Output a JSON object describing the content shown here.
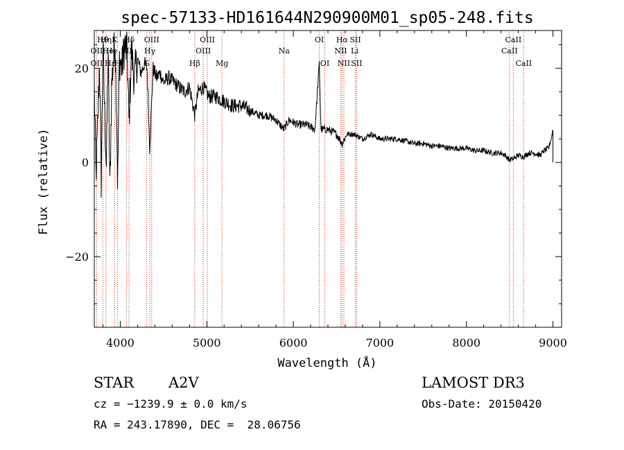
{
  "chart_data": {
    "type": "line",
    "title": "spec-57133-HD161644N290900M01_sp05-248.fits",
    "xlabel": "Wavelength (Å)",
    "ylabel": "Flux (relative)",
    "xlim": [
      3700,
      9100
    ],
    "ylim": [
      -35,
      28
    ],
    "xticks": [
      4000,
      5000,
      6000,
      7000,
      8000,
      9000
    ],
    "yticks": [
      -20,
      0,
      20
    ],
    "series": [
      {
        "name": "spectrum",
        "x": [
          3700,
          3720,
          3740,
          3760,
          3780,
          3800,
          3820,
          3840,
          3860,
          3880,
          3900,
          3920,
          3940,
          3960,
          3970,
          3990,
          4020,
          4050,
          4080,
          4101,
          4130,
          4160,
          4200,
          4240,
          4280,
          4310,
          4340,
          4380,
          4420,
          4460,
          4500,
          4560,
          4620,
          4680,
          4740,
          4800,
          4861,
          4900,
          4960,
          5020,
          5100,
          5200,
          5300,
          5400,
          5500,
          5600,
          5700,
          5800,
          5890,
          5950,
          6050,
          6150,
          6250,
          6300,
          6320,
          6400,
          6500,
          6563,
          6620,
          6700,
          6800,
          6900,
          7000,
          7100,
          7200,
          7300,
          7400,
          7500,
          7600,
          7700,
          7800,
          7900,
          8000,
          8100,
          8200,
          8300,
          8400,
          8450,
          8498,
          8542,
          8600,
          8662,
          8720,
          8780,
          8850,
          8900,
          8950,
          8980,
          9000
        ],
        "y": [
          16,
          -3,
          8,
          22,
          -4,
          25,
          10,
          -1,
          24,
          -6,
          16,
          22,
          26,
          8,
          -6,
          22,
          20,
          25,
          23,
          8,
          24,
          18,
          22,
          19,
          21,
          20,
          3,
          20,
          18,
          19,
          17,
          18,
          17,
          16,
          15,
          16,
          10,
          15,
          16,
          14,
          14,
          13,
          12,
          12,
          11,
          10,
          10,
          9,
          7,
          9,
          8,
          8,
          7,
          21,
          7,
          7,
          6,
          4,
          6,
          6,
          5,
          6,
          5,
          5,
          5,
          4.5,
          4,
          4,
          3.5,
          3.5,
          3,
          3,
          3,
          2.5,
          2.5,
          2,
          2,
          1.5,
          0.5,
          0.8,
          1.5,
          1.2,
          2,
          2,
          1.5,
          2.5,
          3,
          5,
          7
        ]
      }
    ],
    "lines": [
      {
        "name": "OII",
        "wavelength": 3727
      },
      {
        "name": "Hθ",
        "wavelength": 3798
      },
      {
        "name": "Hη",
        "wavelength": 3835
      },
      {
        "name": "K",
        "wavelength": 3934
      },
      {
        "name": "H",
        "wavelength": 3969
      },
      {
        "name": "SII",
        "wavelength": 4072
      },
      {
        "name": "Hδ",
        "wavelength": 4102
      },
      {
        "name": "G",
        "wavelength": 4304
      },
      {
        "name": "Hγ",
        "wavelength": 4341
      },
      {
        "name": "OIII",
        "wavelength": 4363
      },
      {
        "name": "Hβ",
        "wavelength": 4861
      },
      {
        "name": "OIII",
        "wavelength": 4959
      },
      {
        "name": "OIII",
        "wavelength": 5007
      },
      {
        "name": "Mg",
        "wavelength": 5175
      },
      {
        "name": "Na",
        "wavelength": 5893
      },
      {
        "name": "OI",
        "wavelength": 6300
      },
      {
        "name": "OI",
        "wavelength": 6364
      },
      {
        "name": "NII",
        "wavelength": 6548
      },
      {
        "name": "Hα",
        "wavelength": 6563
      },
      {
        "name": "NII",
        "wavelength": 6584
      },
      {
        "name": "SII",
        "wavelength": 6717
      },
      {
        "name": "SII",
        "wavelength": 6731
      },
      {
        "name": "CaII",
        "wavelength": 8498
      },
      {
        "name": "CaII",
        "wavelength": 8542
      },
      {
        "name": "CaII",
        "wavelength": 8662
      }
    ],
    "line_labels": [
      {
        "text": "Hθ",
        "wavelength": 3798,
        "row": 1
      },
      {
        "text": "OII",
        "wavelength": 3727,
        "row": 2
      },
      {
        "text": "OII",
        "wavelength": 3727,
        "row": 3
      },
      {
        "text": "Hη",
        "wavelength": 3835,
        "row": 1
      },
      {
        "text": "He",
        "wavelength": 3860,
        "row": 2
      },
      {
        "text": "Hε",
        "wavelength": 3880,
        "row": 3
      },
      {
        "text": "K",
        "wavelength": 3934,
        "row": 1
      },
      {
        "text": "He",
        "wavelength": 3900,
        "row": 2
      },
      {
        "text": "H",
        "wavelength": 3969,
        "row": 3
      },
      {
        "text": "Hδ",
        "wavelength": 4102,
        "row": 1
      },
      {
        "text": "SII",
        "wavelength": 4072,
        "row": 2
      },
      {
        "text": "OIII",
        "wavelength": 4363,
        "row": 1
      },
      {
        "text": "Hγ",
        "wavelength": 4341,
        "row": 2
      },
      {
        "text": "G",
        "wavelength": 4304,
        "row": 3
      },
      {
        "text": "OIII",
        "wavelength": 5007,
        "row": 1
      },
      {
        "text": "OIII",
        "wavelength": 4959,
        "row": 2
      },
      {
        "text": "Hβ",
        "wavelength": 4861,
        "row": 3
      },
      {
        "text": "Mg",
        "wavelength": 5175,
        "row": 3
      },
      {
        "text": "Na",
        "wavelength": 5893,
        "row": 2
      },
      {
        "text": "OI",
        "wavelength": 6300,
        "row": 1
      },
      {
        "text": "OI",
        "wavelength": 6364,
        "row": 3
      },
      {
        "text": "Hα",
        "wavelength": 6563,
        "row": 1
      },
      {
        "text": "SII",
        "wavelength": 6717,
        "row": 1
      },
      {
        "text": "NII",
        "wavelength": 6548,
        "row": 2
      },
      {
        "text": "Li",
        "wavelength": 6708,
        "row": 2
      },
      {
        "text": "NII",
        "wavelength": 6584,
        "row": 3
      },
      {
        "text": "SII",
        "wavelength": 6731,
        "row": 3
      },
      {
        "text": "CaII",
        "wavelength": 8542,
        "row": 1
      },
      {
        "text": "CaII",
        "wavelength": 8498,
        "row": 2
      },
      {
        "text": "CaII",
        "wavelength": 8662,
        "row": 3
      }
    ]
  },
  "info": {
    "class_label": "STAR",
    "subclass": "A2V",
    "survey": "LAMOST DR3",
    "cz": "cz = −1239.9 ± 0.0 km/s",
    "obs_date": "Obs-Date: 20150420",
    "coords": "RA = 243.17890, DEC =  28.06756"
  },
  "colors": {
    "line_marker": "#cc2200",
    "spectrum": "#000000"
  }
}
